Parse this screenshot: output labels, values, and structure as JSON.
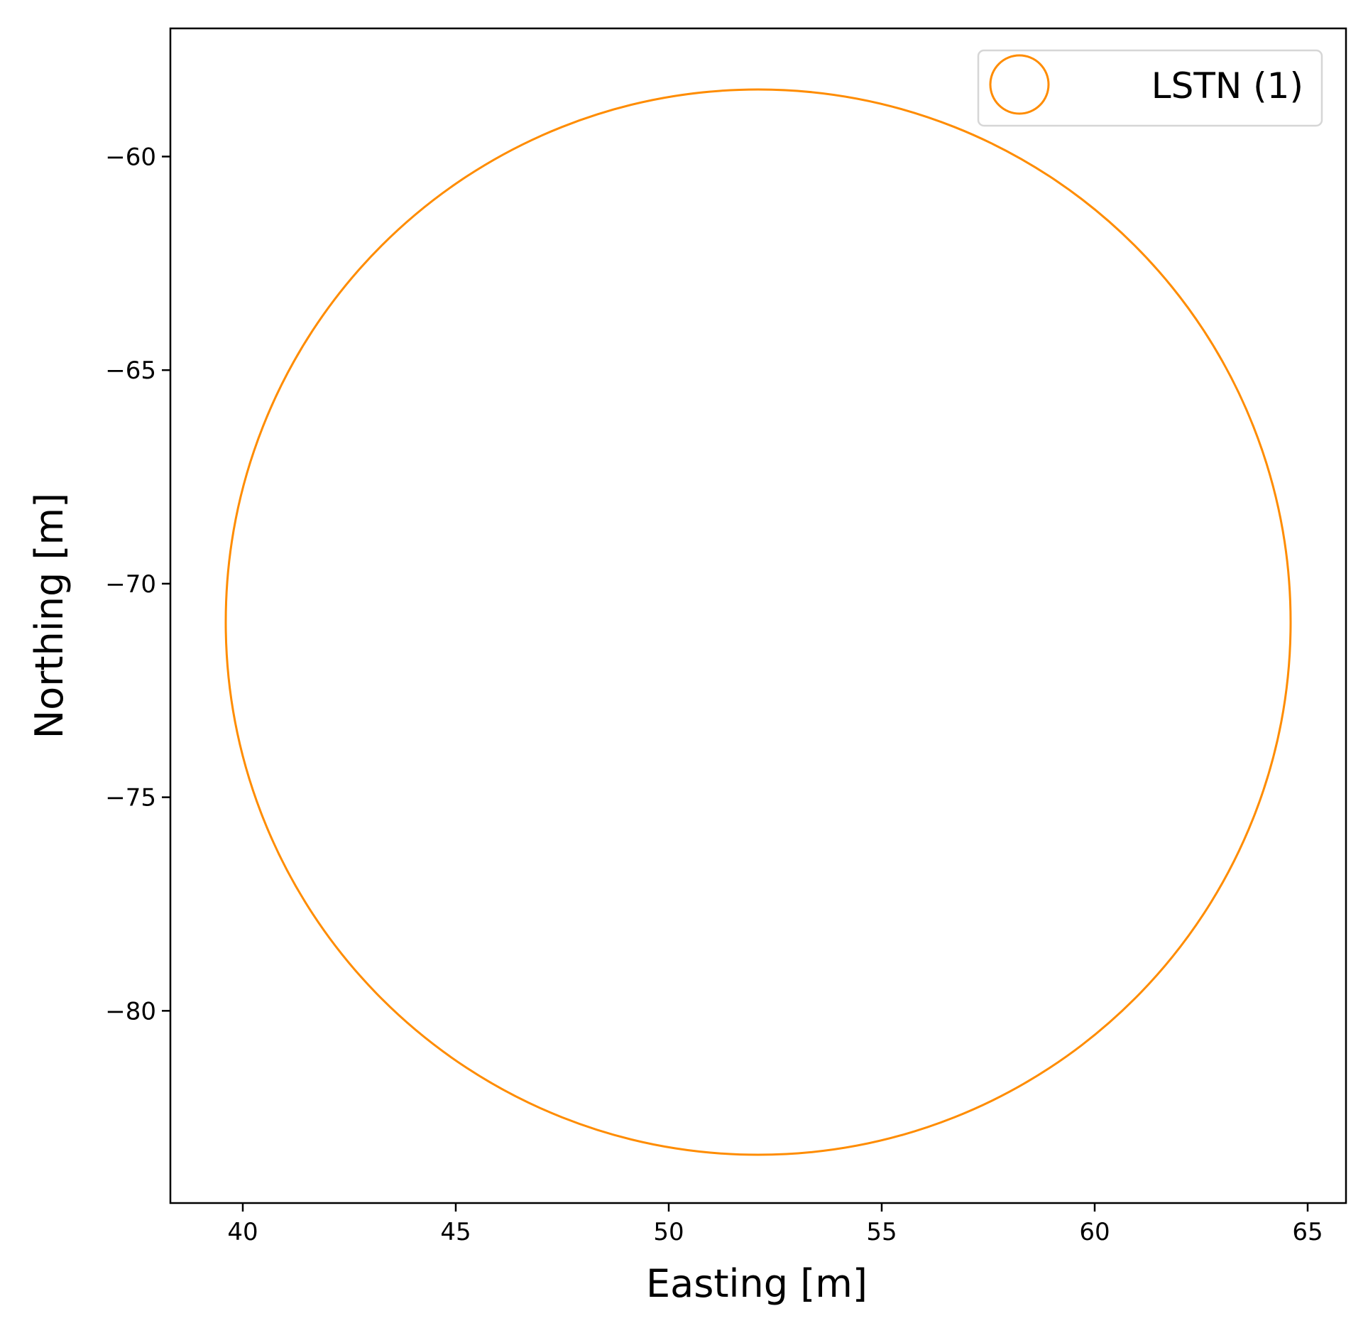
{
  "chart_data": {
    "type": "scatter",
    "title": "",
    "xlabel": "Easting [m]",
    "ylabel": "Northing [m]",
    "xlim": [
      38.3,
      65.9
    ],
    "ylim": [
      -84.5,
      -57.0
    ],
    "xticks": [
      40,
      45,
      50,
      55,
      60,
      65
    ],
    "xtick_labels": [
      "40",
      "45",
      "50",
      "55",
      "60",
      "65"
    ],
    "yticks": [
      -60,
      -65,
      -70,
      -75,
      -80
    ],
    "ytick_labels": [
      "−60",
      "−65",
      "−70",
      "−75",
      "−80"
    ],
    "grid": false,
    "legend_position": "top-right",
    "series": [
      {
        "name": "LSTN (1)",
        "color": "#ff8c00",
        "marker": "hollow-circle",
        "points": [
          {
            "x": 52.1,
            "y": -70.9,
            "radius": 12.5
          }
        ]
      }
    ]
  }
}
